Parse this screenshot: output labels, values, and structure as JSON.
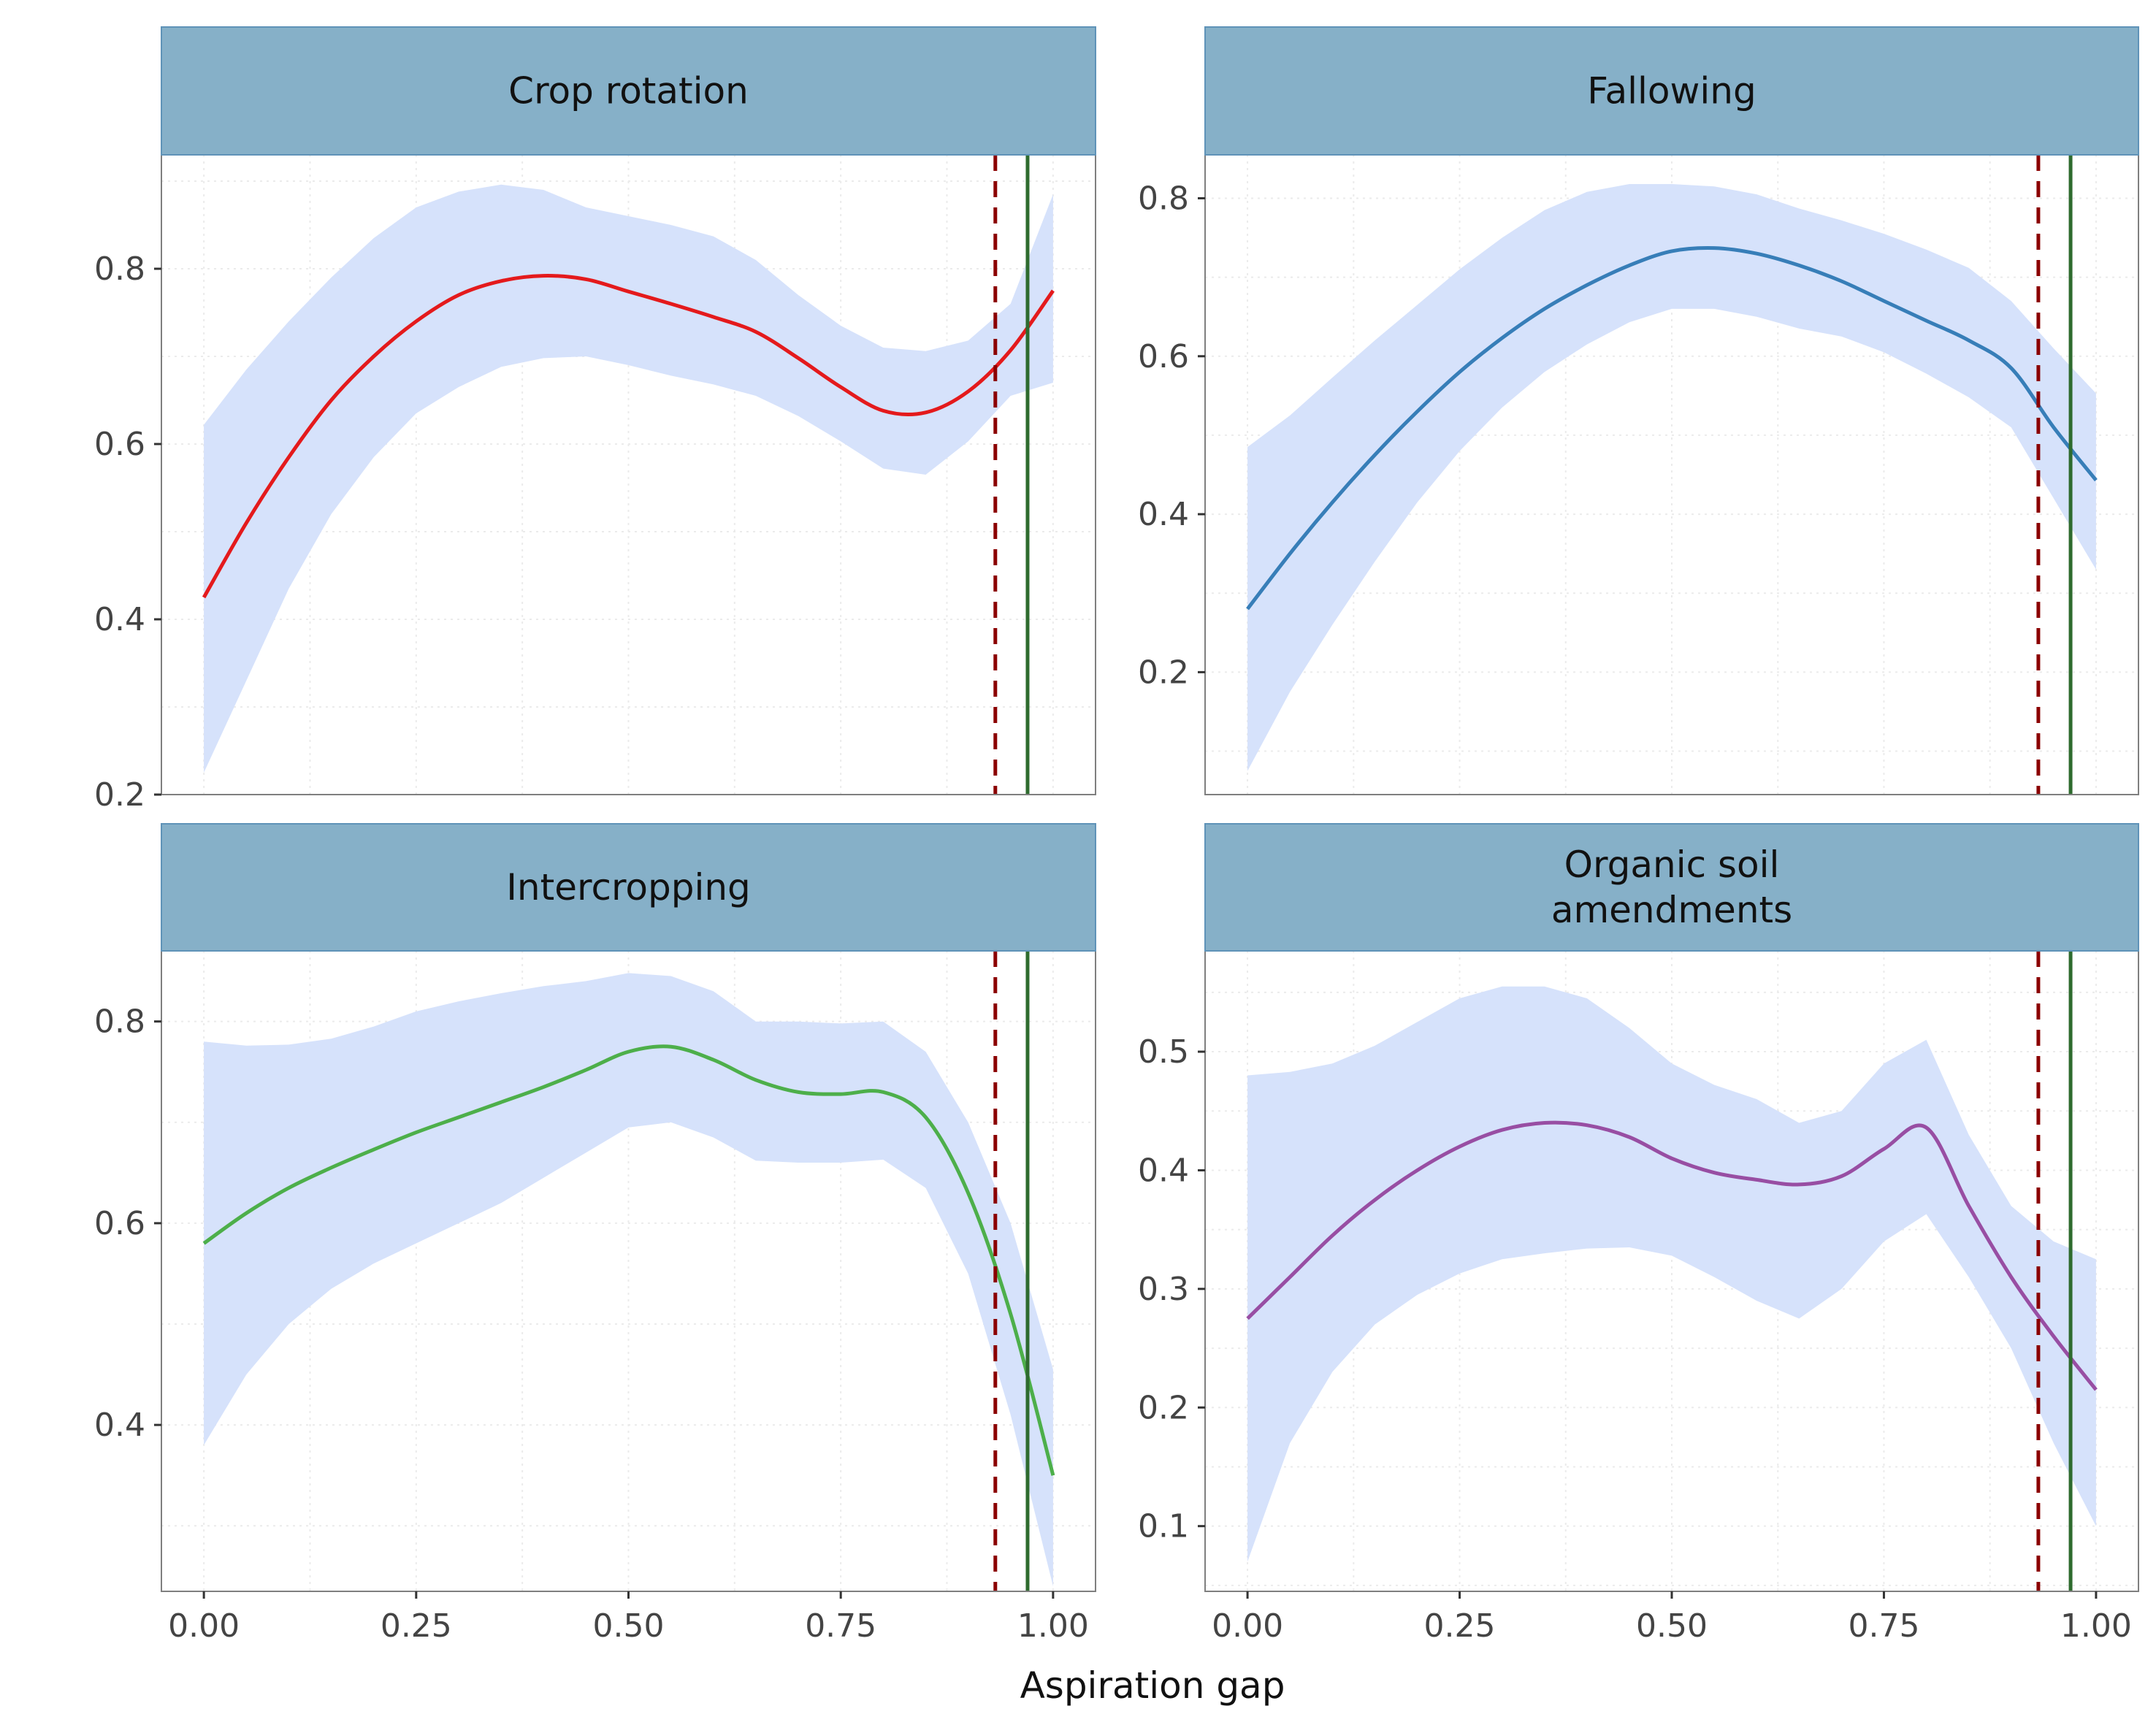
{
  "figure": {
    "xlabel": "Aspiration gap",
    "x_ticks": [
      0,
      0.25,
      0.5,
      0.75,
      1
    ],
    "x_tick_labels": [
      "0.00",
      "0.25",
      "0.50",
      "0.75",
      "1.00"
    ],
    "xlim": [
      -0.05,
      1.05
    ],
    "reference_lines": [
      {
        "x": 0.932,
        "style": "dashed",
        "color": "#8b0000"
      },
      {
        "x": 0.97,
        "style": "solid",
        "color": "#2e6b2e"
      }
    ],
    "colors": {
      "ribbon": "#d6e2fb",
      "strip": "#86b0c8",
      "strip_border": "#5f93b8",
      "grid": "#ebebeb"
    }
  },
  "chart_data": [
    {
      "type": "line",
      "title": "Crop rotation",
      "color": "#e41a1c",
      "ylim": [
        0.2,
        0.93
      ],
      "y_ticks": [
        0.2,
        0.4,
        0.6,
        0.8
      ],
      "y_tick_labels": [
        "0.2",
        "0.4",
        "0.6",
        "0.8"
      ],
      "x": [
        0,
        0.05,
        0.1,
        0.15,
        0.2,
        0.25,
        0.3,
        0.35,
        0.4,
        0.45,
        0.5,
        0.55,
        0.6,
        0.65,
        0.7,
        0.75,
        0.8,
        0.85,
        0.9,
        0.95,
        1.0
      ],
      "y": [
        0.425,
        0.51,
        0.585,
        0.65,
        0.7,
        0.74,
        0.77,
        0.786,
        0.792,
        0.788,
        0.774,
        0.76,
        0.745,
        0.728,
        0.698,
        0.665,
        0.638,
        0.636,
        0.66,
        0.707,
        0.775
      ],
      "ci_lower": [
        0.225,
        0.33,
        0.435,
        0.52,
        0.585,
        0.635,
        0.665,
        0.688,
        0.698,
        0.7,
        0.69,
        0.678,
        0.668,
        0.655,
        0.632,
        0.603,
        0.572,
        0.565,
        0.603,
        0.655,
        0.67
      ],
      "ci_upper": [
        0.622,
        0.685,
        0.74,
        0.79,
        0.835,
        0.87,
        0.888,
        0.896,
        0.89,
        0.87,
        0.86,
        0.85,
        0.837,
        0.81,
        0.77,
        0.735,
        0.71,
        0.706,
        0.718,
        0.76,
        0.885
      ]
    },
    {
      "type": "line",
      "title": "Fallowing",
      "color": "#377eb8",
      "ylim": [
        0.045,
        0.855
      ],
      "y_ticks": [
        0.2,
        0.4,
        0.6,
        0.8
      ],
      "y_tick_labels": [
        "0.2",
        "0.4",
        "0.6",
        "0.8"
      ],
      "x": [
        0,
        0.05,
        0.1,
        0.15,
        0.2,
        0.25,
        0.3,
        0.35,
        0.4,
        0.45,
        0.5,
        0.55,
        0.6,
        0.65,
        0.7,
        0.75,
        0.8,
        0.85,
        0.9,
        0.95,
        1.0
      ],
      "y": [
        0.28,
        0.35,
        0.415,
        0.475,
        0.53,
        0.58,
        0.623,
        0.66,
        0.69,
        0.715,
        0.733,
        0.737,
        0.73,
        0.715,
        0.695,
        0.67,
        0.645,
        0.62,
        0.585,
        0.51,
        0.443
      ],
      "ci_lower": [
        0.075,
        0.175,
        0.26,
        0.34,
        0.415,
        0.48,
        0.535,
        0.58,
        0.615,
        0.643,
        0.66,
        0.66,
        0.65,
        0.635,
        0.625,
        0.605,
        0.578,
        0.548,
        0.51,
        0.42,
        0.33
      ],
      "ci_upper": [
        0.485,
        0.525,
        0.573,
        0.62,
        0.665,
        0.71,
        0.75,
        0.785,
        0.808,
        0.818,
        0.818,
        0.815,
        0.805,
        0.787,
        0.772,
        0.755,
        0.735,
        0.712,
        0.67,
        0.61,
        0.553
      ]
    },
    {
      "type": "line",
      "title": "Intercropping",
      "color": "#4daf4a",
      "ylim": [
        0.235,
        0.87
      ],
      "y_ticks": [
        0.4,
        0.6,
        0.8
      ],
      "y_tick_labels": [
        "0.4",
        "0.6",
        "0.8"
      ],
      "x": [
        0,
        0.05,
        0.1,
        0.15,
        0.2,
        0.25,
        0.3,
        0.35,
        0.4,
        0.45,
        0.5,
        0.55,
        0.6,
        0.65,
        0.7,
        0.75,
        0.8,
        0.85,
        0.9,
        0.95,
        1.0
      ],
      "y": [
        0.58,
        0.61,
        0.635,
        0.655,
        0.673,
        0.69,
        0.705,
        0.72,
        0.735,
        0.752,
        0.77,
        0.775,
        0.762,
        0.742,
        0.73,
        0.728,
        0.73,
        0.705,
        0.63,
        0.51,
        0.35
      ],
      "ci_lower": [
        0.38,
        0.45,
        0.5,
        0.535,
        0.56,
        0.58,
        0.6,
        0.62,
        0.645,
        0.67,
        0.695,
        0.7,
        0.685,
        0.662,
        0.66,
        0.66,
        0.663,
        0.635,
        0.55,
        0.41,
        0.24
      ],
      "ci_upper": [
        0.78,
        0.776,
        0.777,
        0.783,
        0.795,
        0.81,
        0.82,
        0.828,
        0.835,
        0.84,
        0.848,
        0.845,
        0.83,
        0.8,
        0.8,
        0.798,
        0.8,
        0.77,
        0.7,
        0.6,
        0.455
      ]
    },
    {
      "type": "line",
      "title": "Organic soil\namendments",
      "color": "#984ea3",
      "ylim": [
        0.045,
        0.585
      ],
      "y_ticks": [
        0.1,
        0.2,
        0.3,
        0.4,
        0.5
      ],
      "y_tick_labels": [
        "0.1",
        "0.2",
        "0.3",
        "0.4",
        "0.5"
      ],
      "x": [
        0,
        0.05,
        0.1,
        0.15,
        0.2,
        0.25,
        0.3,
        0.35,
        0.4,
        0.45,
        0.5,
        0.55,
        0.6,
        0.65,
        0.7,
        0.75,
        0.8,
        0.85,
        0.9,
        0.95,
        1.0
      ],
      "y": [
        0.275,
        0.31,
        0.345,
        0.375,
        0.4,
        0.42,
        0.434,
        0.44,
        0.438,
        0.428,
        0.41,
        0.398,
        0.392,
        0.388,
        0.395,
        0.418,
        0.436,
        0.37,
        0.31,
        0.26,
        0.215
      ],
      "ci_lower": [
        0.07,
        0.17,
        0.23,
        0.27,
        0.295,
        0.313,
        0.325,
        0.33,
        0.334,
        0.335,
        0.328,
        0.31,
        0.29,
        0.275,
        0.3,
        0.34,
        0.363,
        0.31,
        0.25,
        0.17,
        0.1
      ],
      "ci_upper": [
        0.48,
        0.483,
        0.49,
        0.505,
        0.525,
        0.545,
        0.555,
        0.555,
        0.545,
        0.52,
        0.49,
        0.472,
        0.46,
        0.44,
        0.45,
        0.49,
        0.51,
        0.43,
        0.37,
        0.34,
        0.325
      ]
    }
  ]
}
